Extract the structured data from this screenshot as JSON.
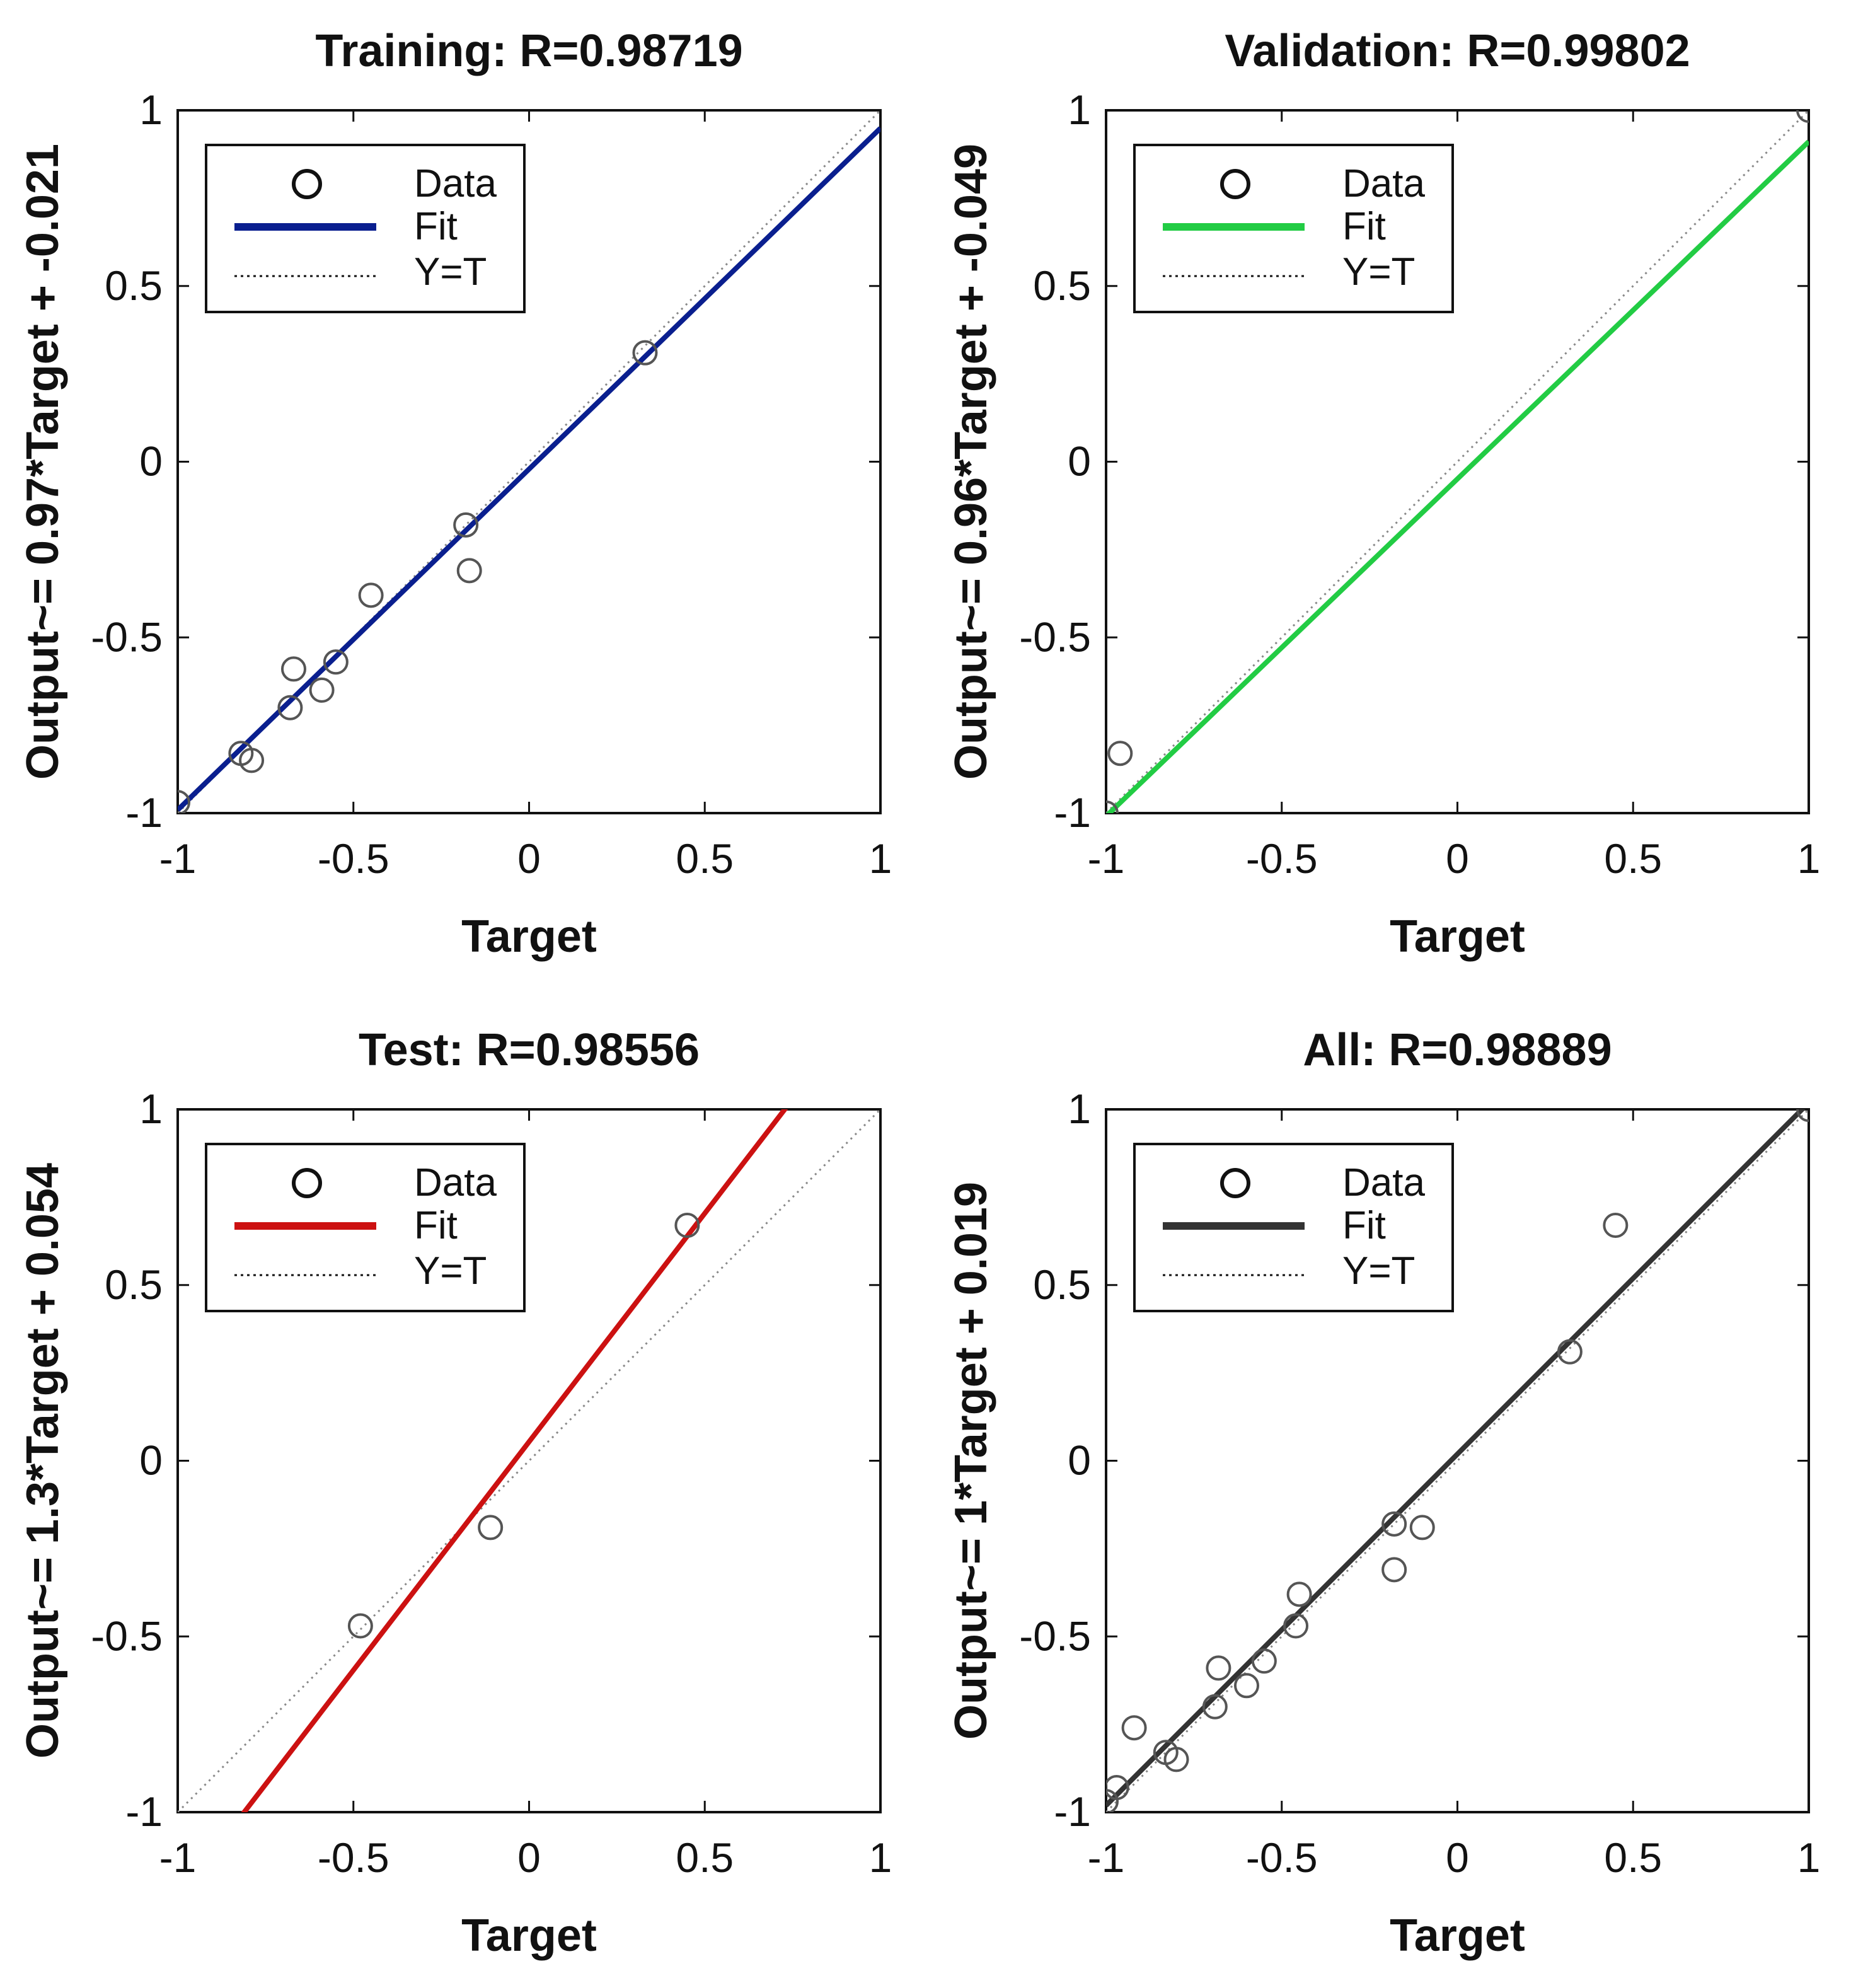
{
  "chart_data": [
    {
      "type": "scatter",
      "title": "Training: R=0.98719",
      "xlabel": "Target",
      "ylabel": "Output~= 0.97*Target + -0.021",
      "xlim": [
        -1,
        1
      ],
      "ylim": [
        -1,
        1
      ],
      "xticks": [
        "-1",
        "-0.5",
        "0",
        "0.5",
        "1"
      ],
      "yticks": [
        "1",
        "0.5",
        "0",
        "-0.5",
        "-1"
      ],
      "fit_color": "#0a1f8f",
      "fit": {
        "slope": 0.97,
        "intercept": -0.021
      },
      "legend": {
        "position": "top-left",
        "entries": [
          "Data",
          "Fit",
          "Y=T"
        ]
      },
      "points": [
        {
          "x": -1.0,
          "y": -0.97
        },
        {
          "x": -0.82,
          "y": -0.83
        },
        {
          "x": -0.79,
          "y": -0.85
        },
        {
          "x": -0.68,
          "y": -0.7
        },
        {
          "x": -0.67,
          "y": -0.59
        },
        {
          "x": -0.59,
          "y": -0.65
        },
        {
          "x": -0.55,
          "y": -0.57
        },
        {
          "x": -0.45,
          "y": -0.38
        },
        {
          "x": -0.18,
          "y": -0.18
        },
        {
          "x": -0.17,
          "y": -0.31
        },
        {
          "x": 0.33,
          "y": 0.31
        }
      ]
    },
    {
      "type": "scatter",
      "title": "Validation: R=0.99802",
      "xlabel": "Target",
      "ylabel": "Output~= 0.96*Target + -0.049",
      "xlim": [
        -1,
        1
      ],
      "ylim": [
        -1,
        1
      ],
      "xticks": [
        "-1",
        "-0.5",
        "0",
        "0.5",
        "1"
      ],
      "yticks": [
        "1",
        "0.5",
        "0",
        "-0.5",
        "-1"
      ],
      "fit_color": "#22cc44",
      "fit": {
        "slope": 0.96,
        "intercept": -0.049
      },
      "legend": {
        "position": "top-left",
        "entries": [
          "Data",
          "Fit",
          "Y=T"
        ]
      },
      "points": [
        {
          "x": -1.0,
          "y": -1.0
        },
        {
          "x": -0.96,
          "y": -0.83
        },
        {
          "x": 1.0,
          "y": 1.0
        }
      ]
    },
    {
      "type": "scatter",
      "title": "Test: R=0.98556",
      "xlabel": "Target",
      "ylabel": "Output~= 1.3*Target + 0.054",
      "xlim": [
        -1,
        1
      ],
      "ylim": [
        -1,
        1
      ],
      "xticks": [
        "-1",
        "-0.5",
        "0",
        "0.5",
        "1"
      ],
      "yticks": [
        "1",
        "0.5",
        "0",
        "-0.5",
        "-1"
      ],
      "fit_color": "#cc1111",
      "fit": {
        "slope": 1.3,
        "intercept": 0.054
      },
      "legend": {
        "position": "top-left",
        "entries": [
          "Data",
          "Fit",
          "Y=T"
        ]
      },
      "points": [
        {
          "x": -0.48,
          "y": -0.47
        },
        {
          "x": -0.11,
          "y": -0.19
        },
        {
          "x": 0.45,
          "y": 0.67
        }
      ]
    },
    {
      "type": "scatter",
      "title": "All: R=0.98889",
      "xlabel": "Target",
      "ylabel": "Output~= 1*Target + 0.019",
      "xlim": [
        -1,
        1
      ],
      "ylim": [
        -1,
        1
      ],
      "xticks": [
        "-1",
        "-0.5",
        "0",
        "0.5",
        "1"
      ],
      "yticks": [
        "1",
        "0.5",
        "0",
        "-0.5",
        "-1"
      ],
      "fit_color": "#333333",
      "fit": {
        "slope": 1.0,
        "intercept": 0.019
      },
      "legend": {
        "position": "top-left",
        "entries": [
          "Data",
          "Fit",
          "Y=T"
        ]
      },
      "points": [
        {
          "x": -1.0,
          "y": -0.97
        },
        {
          "x": -0.97,
          "y": -0.93
        },
        {
          "x": -0.92,
          "y": -0.76
        },
        {
          "x": -0.83,
          "y": -0.83
        },
        {
          "x": -0.8,
          "y": -0.85
        },
        {
          "x": -0.69,
          "y": -0.7
        },
        {
          "x": -0.68,
          "y": -0.59
        },
        {
          "x": -0.6,
          "y": -0.64
        },
        {
          "x": -0.55,
          "y": -0.57
        },
        {
          "x": -0.46,
          "y": -0.47
        },
        {
          "x": -0.45,
          "y": -0.38
        },
        {
          "x": -0.18,
          "y": -0.18
        },
        {
          "x": -0.18,
          "y": -0.31
        },
        {
          "x": -0.1,
          "y": -0.19
        },
        {
          "x": 0.32,
          "y": 0.31
        },
        {
          "x": 0.45,
          "y": 0.67
        },
        {
          "x": 1.0,
          "y": 1.0
        }
      ]
    }
  ]
}
